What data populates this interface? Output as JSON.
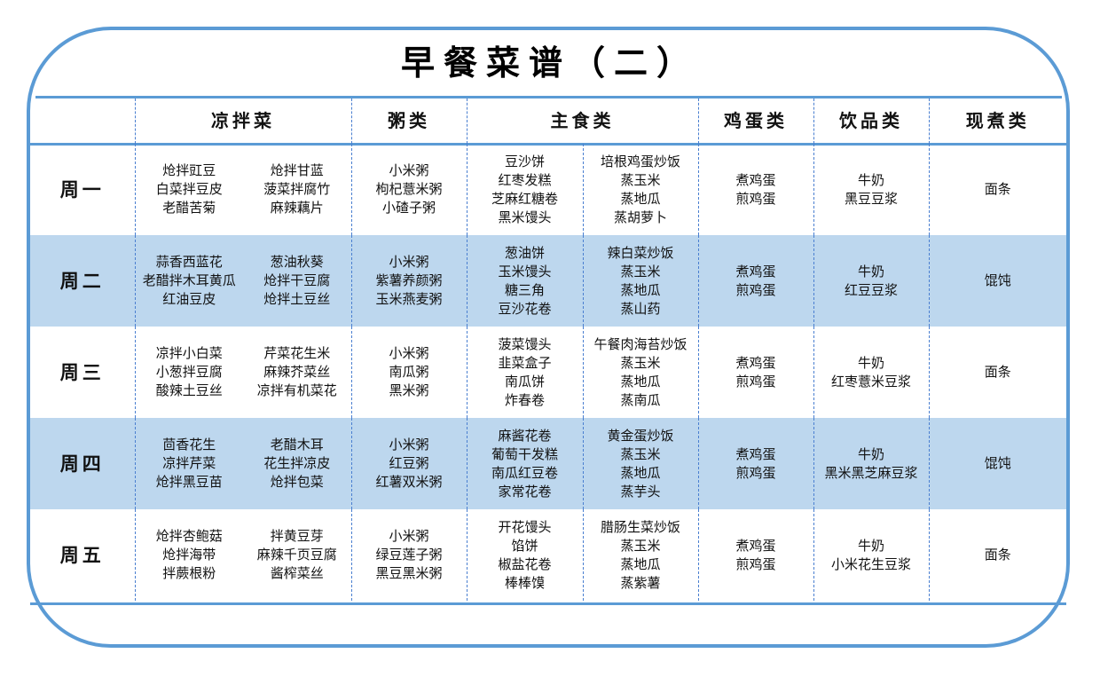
{
  "title": "早餐菜谱（二）",
  "headers": [
    "凉拌菜",
    "粥类",
    "主食类",
    "鸡蛋类",
    "饮品类",
    "现煮类"
  ],
  "colors": {
    "border": "#5b9bd5",
    "alt_row": "#bdd7ee",
    "divider": "#4a7fd0"
  },
  "rows": [
    {
      "day": "周一",
      "cold_a": [
        "炝拌豇豆",
        "白菜拌豆皮",
        "老醋苦菊"
      ],
      "cold_b": [
        "炝拌甘蓝",
        "菠菜拌腐竹",
        "麻辣藕片"
      ],
      "porridge": [
        "小米粥",
        "枸杞薏米粥",
        "小碴子粥"
      ],
      "staple_a": [
        "豆沙饼",
        "红枣发糕",
        "芝麻红糖卷",
        "黑米馒头"
      ],
      "staple_b": [
        "培根鸡蛋炒饭",
        "蒸玉米",
        "蒸地瓜",
        "蒸胡萝卜"
      ],
      "eggs": [
        "煮鸡蛋",
        "煎鸡蛋"
      ],
      "drinks": [
        "牛奶",
        "黑豆豆浆"
      ],
      "hot": "面条"
    },
    {
      "day": "周二",
      "cold_a": [
        "蒜香西蓝花",
        "老醋拌木耳黄瓜",
        "红油豆皮"
      ],
      "cold_b": [
        "葱油秋葵",
        "炝拌干豆腐",
        "炝拌土豆丝"
      ],
      "porridge": [
        "小米粥",
        "紫薯养颜粥",
        "玉米燕麦粥"
      ],
      "staple_a": [
        "葱油饼",
        "玉米馒头",
        "糖三角",
        "豆沙花卷"
      ],
      "staple_b": [
        "辣白菜炒饭",
        "蒸玉米",
        "蒸地瓜",
        "蒸山药"
      ],
      "eggs": [
        "煮鸡蛋",
        "煎鸡蛋"
      ],
      "drinks": [
        "牛奶",
        "红豆豆浆"
      ],
      "hot": "馄饨"
    },
    {
      "day": "周三",
      "cold_a": [
        "凉拌小白菜",
        "小葱拌豆腐",
        "酸辣土豆丝"
      ],
      "cold_b": [
        "芹菜花生米",
        "麻辣芥菜丝",
        "凉拌有机菜花"
      ],
      "porridge": [
        "小米粥",
        "南瓜粥",
        "黑米粥"
      ],
      "staple_a": [
        "菠菜馒头",
        "韭菜盒子",
        "南瓜饼",
        "炸春卷"
      ],
      "staple_b": [
        "午餐肉海苔炒饭",
        "蒸玉米",
        "蒸地瓜",
        "蒸南瓜"
      ],
      "eggs": [
        "煮鸡蛋",
        "煎鸡蛋"
      ],
      "drinks": [
        "牛奶",
        "红枣薏米豆浆"
      ],
      "hot": "面条"
    },
    {
      "day": "周四",
      "cold_a": [
        "茴香花生",
        "凉拌芹菜",
        "炝拌黑豆苗"
      ],
      "cold_b": [
        "老醋木耳",
        "花生拌凉皮",
        "炝拌包菜"
      ],
      "porridge": [
        "小米粥",
        "红豆粥",
        "红薯双米粥"
      ],
      "staple_a": [
        "麻酱花卷",
        "葡萄干发糕",
        "南瓜红豆卷",
        "家常花卷"
      ],
      "staple_b": [
        "黄金蛋炒饭",
        "蒸玉米",
        "蒸地瓜",
        "蒸芋头"
      ],
      "eggs": [
        "煮鸡蛋",
        "煎鸡蛋"
      ],
      "drinks": [
        "牛奶",
        "黑米黑芝麻豆浆"
      ],
      "hot": "馄饨"
    },
    {
      "day": "周五",
      "cold_a": [
        "炝拌杏鲍菇",
        "炝拌海带",
        "拌蕨根粉"
      ],
      "cold_b": [
        "拌黄豆芽",
        "麻辣千页豆腐",
        "酱榨菜丝"
      ],
      "porridge": [
        "小米粥",
        "绿豆莲子粥",
        "黑豆黑米粥"
      ],
      "staple_a": [
        "开花馒头",
        "馅饼",
        "椒盐花卷",
        "棒棒馍"
      ],
      "staple_b": [
        "腊肠生菜炒饭",
        "蒸玉米",
        "蒸地瓜",
        "蒸紫薯"
      ],
      "eggs": [
        "煮鸡蛋",
        "煎鸡蛋"
      ],
      "drinks": [
        "牛奶",
        "小米花生豆浆"
      ],
      "hot": "面条"
    }
  ]
}
